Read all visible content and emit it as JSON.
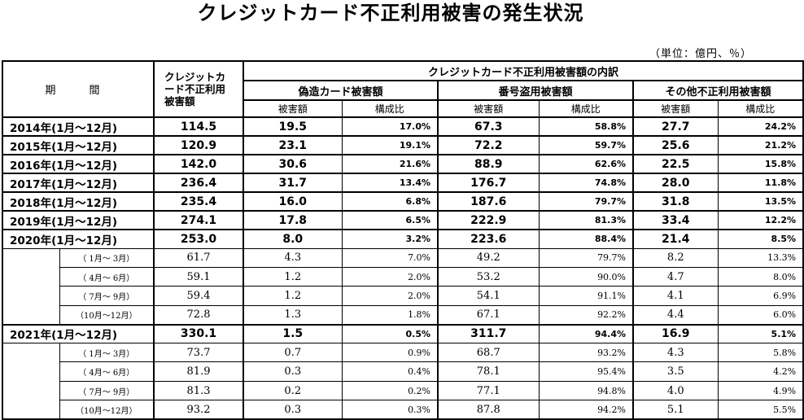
{
  "title": "クレジットカード不正利用被害の発生状況",
  "unit_note": "（単位：億円、％）",
  "headers": {
    "period": "期　間",
    "total": "クレジットカード不正利用被害額",
    "breakdown": "クレジットカード不正利用被害額の内訳",
    "forgery": "偽造カード被害額",
    "number_theft": "番号盗用被害額",
    "other": "その他不正利用被害額",
    "amount": "被害額",
    "ratio": "構成比"
  },
  "years": [
    {
      "label": "2014年(1月～12月)",
      "total": "114.5",
      "forgery": "19.5",
      "forgery_pct": "17.0%",
      "theft": "67.3",
      "theft_pct": "58.8%",
      "other": "27.7",
      "other_pct": "24.2%",
      "quarters": []
    },
    {
      "label": "2015年(1月～12月)",
      "total": "120.9",
      "forgery": "23.1",
      "forgery_pct": "19.1%",
      "theft": "72.2",
      "theft_pct": "59.7%",
      "other": "25.6",
      "other_pct": "21.2%",
      "quarters": []
    },
    {
      "label": "2016年(1月～12月)",
      "total": "142.0",
      "forgery": "30.6",
      "forgery_pct": "21.6%",
      "theft": "88.9",
      "theft_pct": "62.6%",
      "other": "22.5",
      "other_pct": "15.8%",
      "quarters": []
    },
    {
      "label": "2017年(1月～12月)",
      "total": "236.4",
      "forgery": "31.7",
      "forgery_pct": "13.4%",
      "theft": "176.7",
      "theft_pct": "74.8%",
      "other": "28.0",
      "other_pct": "11.8%",
      "quarters": []
    },
    {
      "label": "2018年(1月～12月)",
      "total": "235.4",
      "forgery": "16.0",
      "forgery_pct": "6.8%",
      "theft": "187.6",
      "theft_pct": "79.7%",
      "other": "31.8",
      "other_pct": "13.5%",
      "quarters": []
    },
    {
      "label": "2019年(1月～12月)",
      "total": "274.1",
      "forgery": "17.8",
      "forgery_pct": "6.5%",
      "theft": "222.9",
      "theft_pct": "81.3%",
      "other": "33.4",
      "other_pct": "12.2%",
      "quarters": []
    },
    {
      "label": "2020年(1月～12月)",
      "total": "253.0",
      "forgery": "8.0",
      "forgery_pct": "3.2%",
      "theft": "223.6",
      "theft_pct": "88.4%",
      "other": "21.4",
      "other_pct": "8.5%",
      "quarters": [
        {
          "label": "（ 1月～ 3月）",
          "total": "61.7",
          "forgery": "4.3",
          "forgery_pct": "7.0%",
          "theft": "49.2",
          "theft_pct": "79.7%",
          "other": "8.2",
          "other_pct": "13.3%"
        },
        {
          "label": "（ 4月～ 6月）",
          "total": "59.1",
          "forgery": "1.2",
          "forgery_pct": "2.0%",
          "theft": "53.2",
          "theft_pct": "90.0%",
          "other": "4.7",
          "other_pct": "8.0%"
        },
        {
          "label": "（ 7月～ 9月）",
          "total": "59.4",
          "forgery": "1.2",
          "forgery_pct": "2.0%",
          "theft": "54.1",
          "theft_pct": "91.1%",
          "other": "4.1",
          "other_pct": "6.9%"
        },
        {
          "label": "（10月～12月）",
          "total": "72.8",
          "forgery": "1.3",
          "forgery_pct": "1.8%",
          "theft": "67.1",
          "theft_pct": "92.2%",
          "other": "4.4",
          "other_pct": "6.0%"
        }
      ]
    },
    {
      "label": "2021年(1月～12月)",
      "total": "330.1",
      "forgery": "1.5",
      "forgery_pct": "0.5%",
      "theft": "311.7",
      "theft_pct": "94.4%",
      "other": "16.9",
      "other_pct": "5.1%",
      "quarters": [
        {
          "label": "（ 1月～ 3月）",
          "total": "73.7",
          "forgery": "0.7",
          "forgery_pct": "0.9%",
          "theft": "68.7",
          "theft_pct": "93.2%",
          "other": "4.3",
          "other_pct": "5.8%"
        },
        {
          "label": "（ 4月～ 6月）",
          "total": "81.9",
          "forgery": "0.3",
          "forgery_pct": "0.4%",
          "theft": "78.1",
          "theft_pct": "95.4%",
          "other": "3.5",
          "other_pct": "4.2%"
        },
        {
          "label": "（ 7月～ 9月）",
          "total": "81.3",
          "forgery": "0.2",
          "forgery_pct": "0.2%",
          "theft": "77.1",
          "theft_pct": "94.8%",
          "other": "4.0",
          "other_pct": "4.9%"
        },
        {
          "label": "（10月～12月）",
          "total": "93.2",
          "forgery": "0.3",
          "forgery_pct": "0.3%",
          "theft": "87.8",
          "theft_pct": "94.2%",
          "other": "5.1",
          "other_pct": "5.5%"
        }
      ]
    }
  ]
}
